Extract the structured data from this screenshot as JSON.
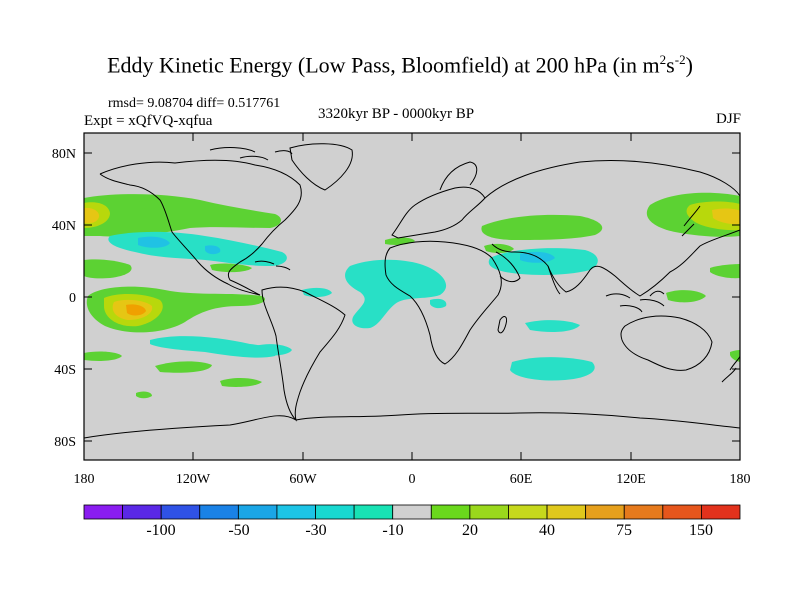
{
  "title": {
    "main": "Eddy Kinetic Energy (Low Pass, Bloomfield) at 200 hPa (in m",
    "sup1": "2",
    "mid": "s",
    "sup2": "-2",
    "end": ")"
  },
  "stats": "rmsd= 9.08704 diff= 0.517761",
  "experiment": "Expt = xQfVQ-xqfua",
  "period": "3320kyr BP - 0000kyr BP",
  "season": "DJF",
  "map": {
    "projection": "cylindrical-equidistant",
    "land_color": "#d0d0d0",
    "lat_ticks": [
      "80N",
      "40N",
      "0",
      "40S",
      "80S"
    ],
    "lon_ticks": [
      "180",
      "120W",
      "60W",
      "0",
      "60E",
      "120E",
      "180"
    ]
  },
  "colorbar": {
    "colors": [
      "#8a1cf0",
      "#5a28e6",
      "#2f52e6",
      "#1a82e6",
      "#1aa6e6",
      "#1cc4e6",
      "#18d8d0",
      "#18e2b4",
      "#d0d0d0",
      "#6ad81c",
      "#9ad81c",
      "#c6d81c",
      "#e0c81c",
      "#e6a01c",
      "#e67a1c",
      "#e6561c",
      "#e2321c"
    ],
    "labels": [
      "-100",
      "-50",
      "-30",
      "-10",
      "20",
      "40",
      "75",
      "150"
    ]
  },
  "colors": {
    "positive_light": "#5cd233",
    "positive_mid": "#b8d80c",
    "positive_high": "#e6c614",
    "positive_peak": "#f0a000",
    "negative_light": "#28e0c6",
    "negative_mid": "#20c2e4"
  }
}
